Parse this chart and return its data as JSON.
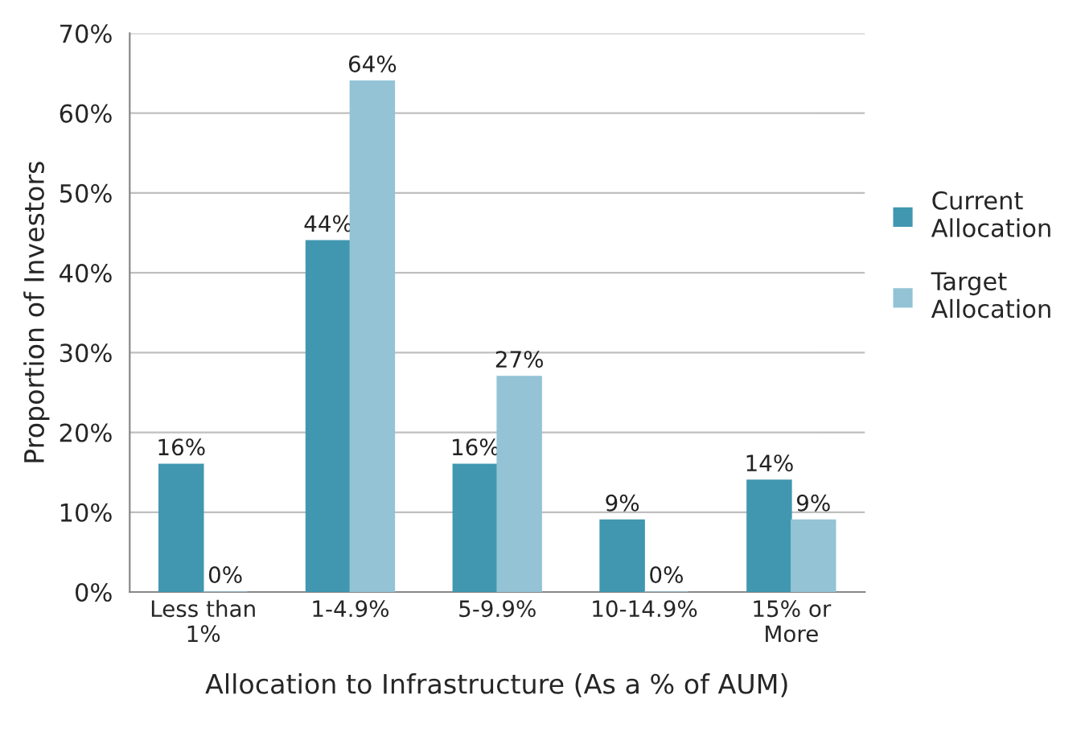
{
  "chart_data": {
    "type": "bar",
    "xlabel": "Allocation to Infrastructure (As a % of AUM)",
    "ylabel": "Proportion of Investors",
    "categories": [
      "Less than\n1%",
      "1-4.9%",
      "5-9.9%",
      "10-14.9%",
      "15% or\nMore"
    ],
    "series": [
      {
        "name": "Current\nAllocation",
        "color": "#4197b0",
        "values": [
          16,
          44,
          16,
          9,
          14
        ]
      },
      {
        "name": "Target\nAllocation",
        "color": "#93c3d5",
        "values": [
          0,
          64,
          27,
          0,
          9
        ]
      }
    ],
    "ylim": [
      0,
      70
    ],
    "yticks": [
      {
        "value": 0,
        "label": "0%"
      },
      {
        "value": 10,
        "label": "10%"
      },
      {
        "value": 20,
        "label": "20%"
      },
      {
        "value": 30,
        "label": "30%"
      },
      {
        "value": 40,
        "label": "40%"
      },
      {
        "value": 50,
        "label": "50%"
      },
      {
        "value": 60,
        "label": "60%"
      },
      {
        "value": 70,
        "label": "70%"
      }
    ],
    "value_labels": [
      [
        "16%",
        "44%",
        "16%",
        "9%",
        "14%"
      ],
      [
        "0%",
        "64%",
        "27%",
        "0%",
        "9%"
      ]
    ],
    "grid": "y",
    "legend": "right"
  }
}
